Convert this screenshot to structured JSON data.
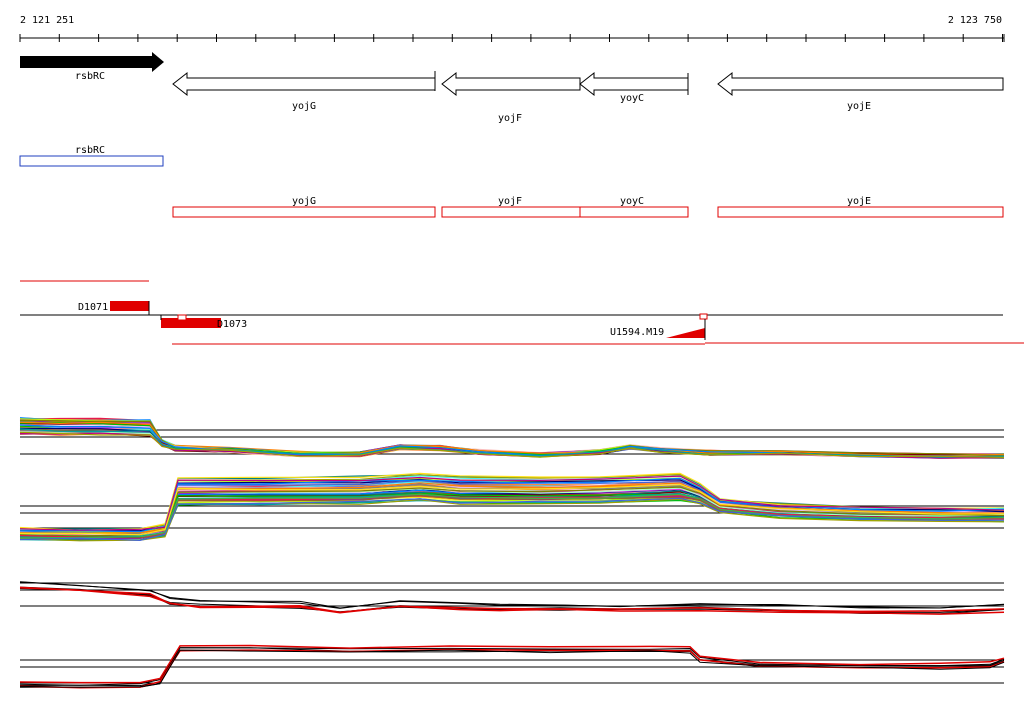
{
  "ruler": {
    "start_label": "2 121 251",
    "end_label": "2 123 750",
    "start_bp": 2121251,
    "end_bp": 2123750
  },
  "genes": [
    {
      "name": "rsbRC",
      "strand": "+",
      "style": "filled"
    },
    {
      "name": "yojG",
      "strand": "-",
      "style": "open"
    },
    {
      "name": "yojF",
      "strand": "-",
      "style": "open"
    },
    {
      "name": "yoyC",
      "strand": "-",
      "style": "open"
    },
    {
      "name": "yojE",
      "strand": "-",
      "style": "open"
    }
  ],
  "features": {
    "blue": [
      {
        "name": "rsbRC"
      }
    ],
    "red": [
      {
        "name": "yojG"
      },
      {
        "name": "yojF"
      },
      {
        "name": "yoyC"
      },
      {
        "name": "yojE"
      }
    ]
  },
  "probes": [
    {
      "name": "D1071"
    },
    {
      "name": "D1073"
    },
    {
      "name": "U1594.M19"
    }
  ],
  "colors": {
    "gene_filled": "#000000",
    "blue_box": "#1f3fbf",
    "red_box": "#e00000",
    "profile_highlight": "#e00000",
    "profile_line": "#000000"
  }
}
